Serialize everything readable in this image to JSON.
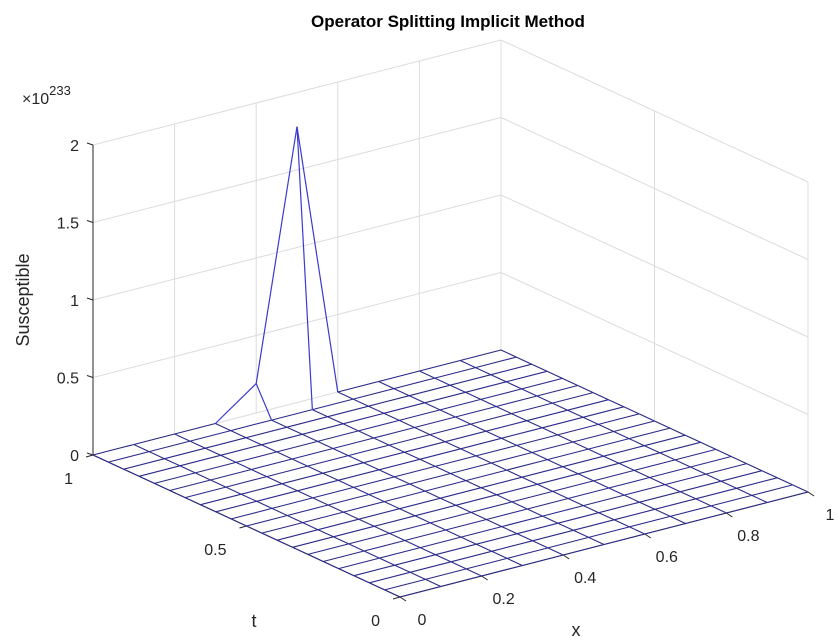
{
  "chart_data": {
    "type": "surface",
    "title": "Operator Splitting Implicit Method",
    "xlabel": "x",
    "ylabel": "t",
    "zlabel": "Susceptible",
    "z_exponent_label": "×10",
    "z_exponent": "233",
    "xlim": [
      0,
      1
    ],
    "ylim": [
      0,
      1
    ],
    "zlim": [
      0,
      2
    ],
    "x_ticks": [
      "0",
      "0.2",
      "0.4",
      "0.6",
      "0.8",
      "1"
    ],
    "y_ticks": [
      "0",
      "0.5",
      "1"
    ],
    "z_ticks": [
      "0",
      "0.5",
      "1",
      "1.5",
      "2"
    ],
    "grid": true,
    "mesh": {
      "x_intervals": 10,
      "t_intervals": 20,
      "color": "#2b2b8a"
    },
    "nonzero_points": [
      {
        "x": 0.4,
        "t": 1.0,
        "z": 0.19,
        "note": "×1e233"
      },
      {
        "x": 0.5,
        "t": 1.0,
        "z": 1.78,
        "note": "×1e233 (peak)"
      }
    ],
    "baseline_value": 0
  }
}
